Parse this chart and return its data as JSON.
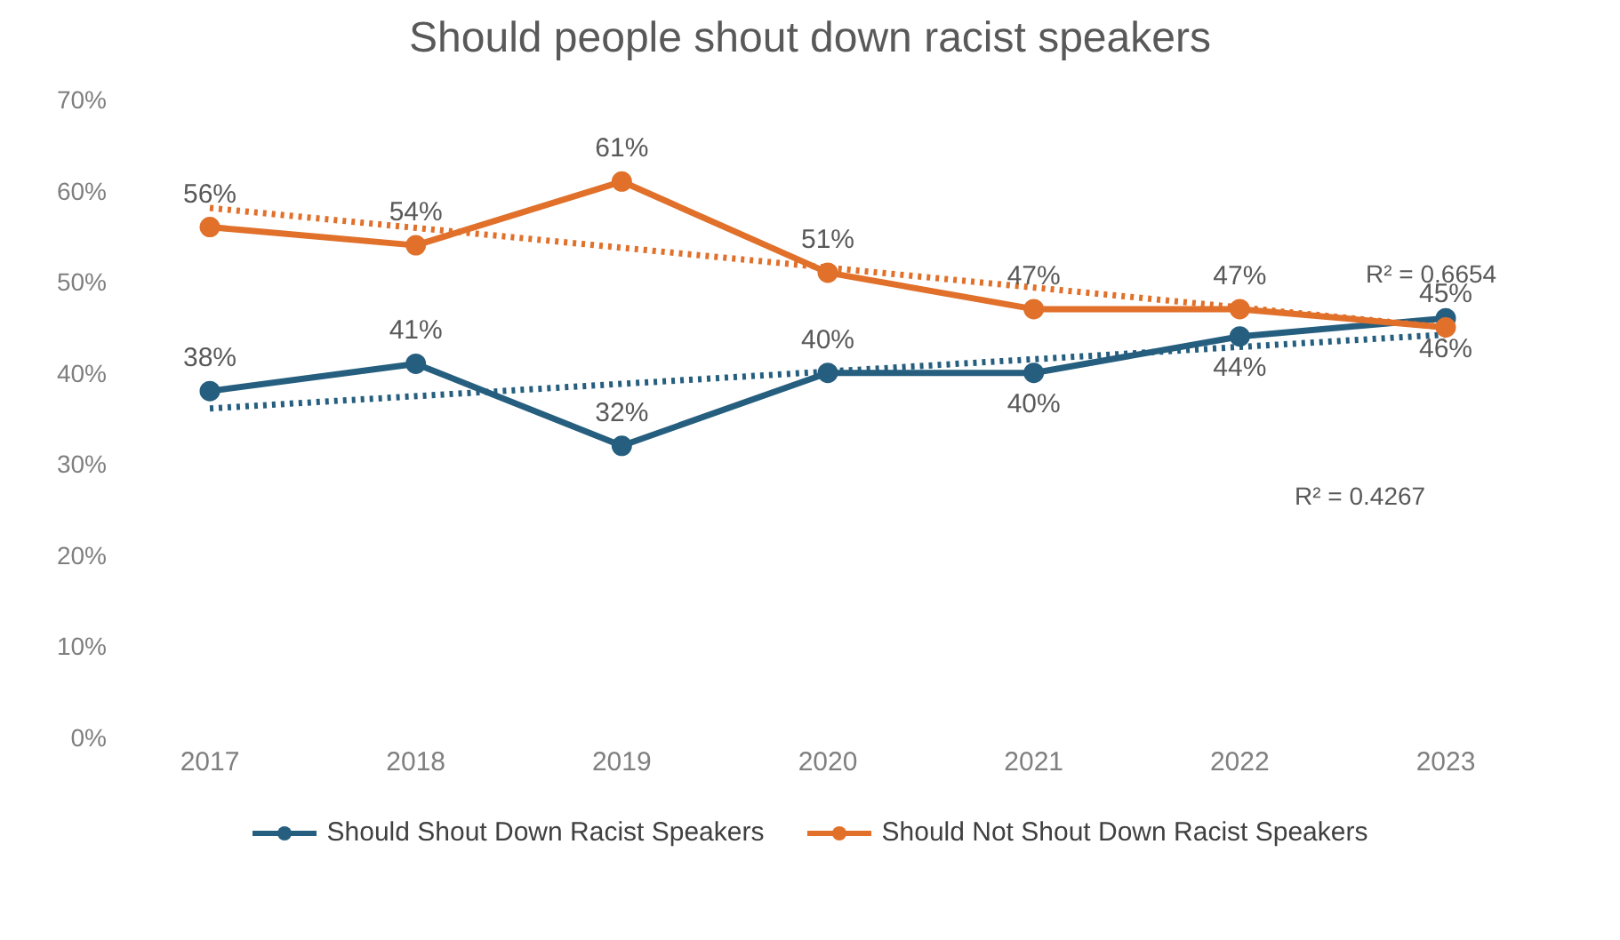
{
  "chart_data": {
    "type": "line",
    "title": "Should people shout down racist speakers",
    "categories": [
      "2017",
      "2018",
      "2019",
      "2020",
      "2021",
      "2022",
      "2023"
    ],
    "series": [
      {
        "name": "Should Shout Down Racist Speakers",
        "color": "#255e7e",
        "values": [
          38,
          41,
          32,
          40,
          40,
          44,
          46
        ],
        "value_labels": [
          "38%",
          "41%",
          "32%",
          "40%",
          "40%",
          "44%",
          "46%"
        ]
      },
      {
        "name": "Should Not Shout Down Racist Speakers",
        "color": "#e0702a",
        "values": [
          56,
          54,
          61,
          51,
          47,
          47,
          45
        ],
        "value_labels": [
          "56%",
          "54%",
          "61%",
          "51%",
          "47%",
          "47%",
          "45%"
        ]
      },
      {
        "type": "line",
        "color": "#255e7e",
        "line_style": "dotted",
        "marker": "none",
        "values": [
          36.1,
          null,
          null,
          null,
          null,
          null,
          44.2
        ]
      },
      {
        "type": "line",
        "color": "#e0702a",
        "line_style": "dotted",
        "marker": "none",
        "values": [
          58.1,
          null,
          null,
          null,
          null,
          null,
          45.0
        ]
      }
    ],
    "ylim": [
      0,
      70
    ],
    "yticks": [
      {
        "value": 0,
        "label": "0%"
      },
      {
        "value": 10,
        "label": "10%"
      },
      {
        "value": 20,
        "label": "20%"
      },
      {
        "value": 30,
        "label": "30%"
      },
      {
        "value": 40,
        "label": "40%"
      },
      {
        "value": 50,
        "label": "50%"
      },
      {
        "value": 60,
        "label": "60%"
      },
      {
        "value": 70,
        "label": "70%"
      }
    ],
    "annotations": [
      "R² = 0.6654",
      "R² = 0.4267"
    ],
    "grid": false,
    "legend": "bottom",
    "marker": "circle",
    "line_style": "solid"
  }
}
